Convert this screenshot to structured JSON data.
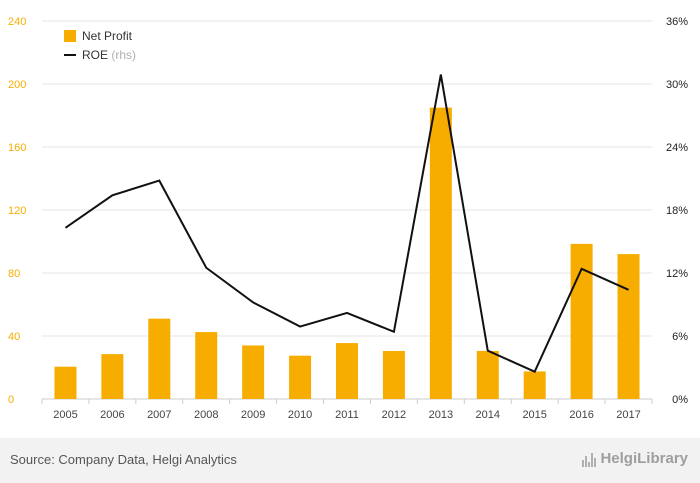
{
  "chart_data": {
    "type": "bar",
    "categories": [
      "2005",
      "2006",
      "2007",
      "2008",
      "2009",
      "2010",
      "2011",
      "2012",
      "2013",
      "2014",
      "2015",
      "2016",
      "2017"
    ],
    "series": [
      {
        "name": "Net Profit",
        "type": "bar",
        "axis": "left",
        "color": "#f7ad00",
        "values": [
          20.5,
          28.5,
          51,
          42.5,
          34,
          27.5,
          35.5,
          30.5,
          185,
          30.5,
          17.5,
          98.5,
          92
        ]
      },
      {
        "name": "ROE",
        "legend_suffix": "(rhs)",
        "type": "line",
        "axis": "right",
        "color": "#111111",
        "values": [
          16.3,
          19.4,
          20.8,
          12.5,
          9.2,
          6.9,
          8.2,
          6.4,
          30.9,
          4.6,
          2.6,
          12.4,
          10.4
        ]
      }
    ],
    "left_axis": {
      "min": 0,
      "max": 240,
      "ticks": [
        0,
        40,
        80,
        120,
        160,
        200,
        240
      ],
      "labels": [
        "0",
        "40",
        "80",
        "120",
        "160",
        "200",
        "240"
      ],
      "color": "#f7ad00"
    },
    "right_axis": {
      "min": 0,
      "max": 36,
      "ticks": [
        0,
        6,
        12,
        18,
        24,
        30,
        36
      ],
      "labels": [
        "0%",
        "6%",
        "12%",
        "18%",
        "24%",
        "30%",
        "36%"
      ]
    },
    "grid": true,
    "legend_position": "top-left"
  },
  "footer": {
    "source": "Source: Company Data, Helgi Analytics",
    "brand": "HelgiLibrary"
  }
}
